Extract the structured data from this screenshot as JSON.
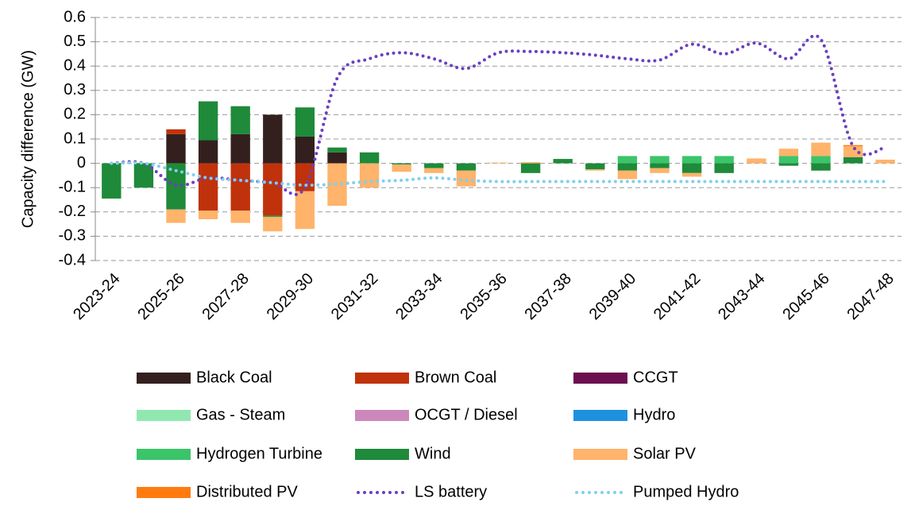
{
  "chart_data": {
    "type": "bar",
    "stacked": true,
    "y_label": "Capacity difference (GW)",
    "categories": [
      "2023-24",
      null,
      "2025-26",
      null,
      "2027-28",
      null,
      "2029-30",
      null,
      "2031-32",
      null,
      "2033-34",
      null,
      "2035-36",
      null,
      "2037-38",
      null,
      "2039-40",
      null,
      "2041-42",
      null,
      "2043-44",
      null,
      "2045-46",
      null,
      "2047-48"
    ],
    "ylim": [
      -0.4,
      0.6
    ],
    "yticks": [
      -0.4,
      -0.3,
      -0.2,
      -0.1,
      0.0,
      0.1,
      0.2,
      0.3,
      0.4,
      0.5,
      0.6
    ],
    "grid": true,
    "series": [
      {
        "name": "Black Coal",
        "color": "#33201e",
        "values": [
          0,
          0,
          0.12,
          0.095,
          0.12,
          0.2,
          0.11,
          0.045,
          0,
          0,
          0,
          0,
          0,
          0,
          0,
          0,
          0,
          0,
          0,
          0,
          0,
          0,
          0,
          0,
          0
        ]
      },
      {
        "name": "Brown Coal",
        "color": "#c0320c",
        "values": [
          0,
          0,
          0.02,
          -0.195,
          -0.195,
          -0.215,
          -0.115,
          0,
          0,
          0,
          0,
          0,
          0,
          0,
          0,
          0,
          0,
          0,
          0,
          0,
          0,
          0,
          0,
          0,
          0
        ]
      },
      {
        "name": "CCGT",
        "color": "#6b0f4f",
        "values": [
          0,
          0,
          0,
          0,
          0,
          0,
          0,
          0,
          0,
          0,
          0,
          0,
          0,
          0,
          0,
          0,
          0,
          0,
          0,
          0,
          0,
          0,
          0,
          0,
          0
        ]
      },
      {
        "name": "Gas - Steam",
        "color": "#90e8b0",
        "values": [
          0,
          0,
          0,
          0,
          0,
          0,
          0,
          0,
          0,
          0,
          0,
          0,
          0,
          0,
          0,
          0,
          0,
          0,
          0,
          0,
          0,
          0,
          0,
          0,
          0
        ]
      },
      {
        "name": "OCGT / Diesel",
        "color": "#cc88bb",
        "values": [
          0,
          0,
          0,
          0,
          0,
          0,
          0,
          0,
          0,
          0,
          0,
          0,
          0,
          0,
          0,
          0,
          0,
          0,
          0,
          0,
          0,
          0,
          0,
          0,
          0
        ]
      },
      {
        "name": "Hydro",
        "color": "#1e90e0",
        "values": [
          0,
          0,
          0,
          0,
          0,
          0,
          0,
          0,
          0,
          0,
          0,
          0,
          0,
          0,
          0,
          0,
          0,
          0,
          0,
          0,
          0,
          0,
          0,
          0,
          0
        ]
      },
      {
        "name": "Hydrogen Turbine",
        "color": "#3cc46a",
        "values": [
          0,
          0,
          0,
          0,
          0,
          0,
          0,
          0,
          0,
          0,
          0,
          0,
          0,
          0,
          0,
          0,
          0.03,
          0.03,
          0.03,
          0.03,
          0,
          0.03,
          0.03,
          0,
          0
        ]
      },
      {
        "name": "Wind",
        "color": "#1e8a3a",
        "values": [
          -0.145,
          -0.1,
          -0.19,
          0.16,
          0.115,
          -0.005,
          0.12,
          0.02,
          0.045,
          -0.005,
          -0.02,
          -0.03,
          0,
          -0.04,
          0.018,
          -0.025,
          -0.03,
          -0.02,
          -0.04,
          -0.04,
          0,
          -0.01,
          -0.03,
          0.025,
          0
        ]
      },
      {
        "name": "Solar PV",
        "color": "#ffb36b",
        "values": [
          0,
          0,
          -0.055,
          -0.035,
          -0.05,
          -0.06,
          -0.155,
          -0.175,
          -0.1,
          -0.03,
          -0.02,
          -0.065,
          0.003,
          0.005,
          0,
          -0.005,
          -0.035,
          -0.02,
          -0.015,
          0,
          0.02,
          0.03,
          0.055,
          0.045,
          0.015
        ]
      },
      {
        "name": "Distributed PV",
        "color": "#ff7b0f",
        "values": [
          0,
          0,
          0,
          0,
          0,
          0,
          0,
          0,
          0,
          0,
          0,
          0,
          0,
          0,
          0,
          0,
          0,
          0,
          0,
          0,
          0,
          0,
          0,
          0.005,
          0
        ]
      },
      {
        "name": "LS battery",
        "color": "#6a3fc0",
        "type": "line",
        "values": [
          0,
          0,
          -0.09,
          -0.06,
          -0.07,
          -0.08,
          -0.1,
          0.35,
          0.43,
          0.455,
          0.43,
          0.39,
          0.455,
          0.46,
          0.455,
          0.445,
          0.43,
          0.425,
          0.49,
          0.45,
          0.495,
          0.43,
          0.51,
          0.07,
          0.065
        ]
      },
      {
        "name": "Pumped Hydro",
        "color": "#7fd0ee",
        "type": "line",
        "values": [
          0,
          0,
          -0.03,
          -0.06,
          -0.07,
          -0.08,
          -0.09,
          -0.085,
          -0.075,
          -0.07,
          -0.06,
          -0.07,
          -0.075,
          -0.075,
          -0.075,
          -0.075,
          -0.075,
          -0.075,
          -0.075,
          -0.075,
          -0.075,
          -0.075,
          -0.075,
          -0.075,
          -0.075
        ]
      }
    ]
  }
}
